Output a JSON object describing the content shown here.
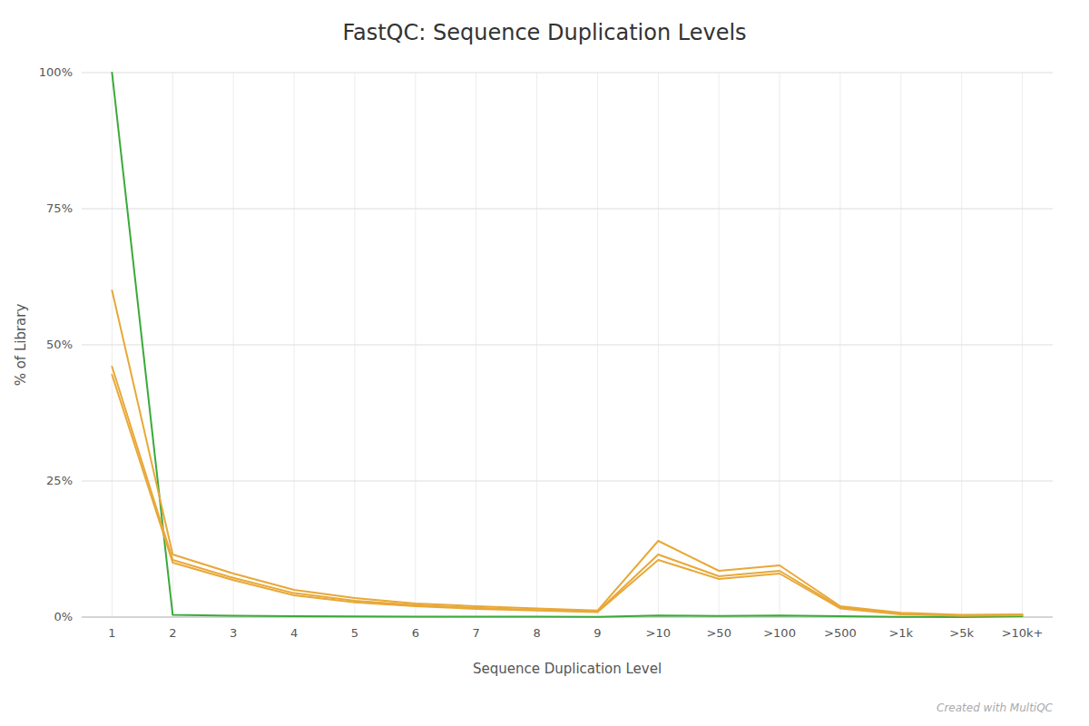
{
  "chart_data": {
    "type": "line",
    "title": "FastQC: Sequence Duplication Levels",
    "x_label": "Sequence Duplication Level",
    "y_label": "% of Library",
    "categories": [
      "1",
      "2",
      "3",
      "4",
      "5",
      "6",
      "7",
      "8",
      "9",
      ">10",
      ">50",
      ">100",
      ">500",
      ">1k",
      ">5k",
      ">10k+"
    ],
    "series": [
      {
        "color": "#39aa39",
        "values": [
          100.0,
          0.4,
          0.25,
          0.18,
          0.13,
          0.1,
          0.08,
          0.07,
          0.06,
          0.3,
          0.2,
          0.3,
          0.15,
          0.05,
          0.02,
          0.15
        ]
      },
      {
        "color": "#e8a838",
        "values": [
          60.0,
          11.5,
          8.0,
          5.0,
          3.5,
          2.5,
          2.0,
          1.6,
          1.2,
          14.0,
          8.5,
          9.5,
          2.0,
          0.8,
          0.4,
          0.5
        ]
      },
      {
        "color": "#e8a838",
        "values": [
          46.0,
          10.5,
          7.2,
          4.4,
          3.0,
          2.2,
          1.7,
          1.3,
          1.0,
          11.5,
          7.5,
          8.5,
          1.8,
          0.6,
          0.3,
          0.4
        ]
      },
      {
        "color": "#e8a838",
        "values": [
          44.5,
          10.0,
          6.8,
          4.0,
          2.7,
          2.0,
          1.5,
          1.2,
          0.9,
          10.5,
          7.0,
          8.0,
          1.6,
          0.5,
          0.25,
          0.35
        ]
      }
    ],
    "ylim": [
      0,
      100
    ],
    "yticks": [
      {
        "value": 0,
        "label": "0%"
      },
      {
        "value": 25,
        "label": "25%"
      },
      {
        "value": 50,
        "label": "50%"
      },
      {
        "value": 75,
        "label": "75%"
      },
      {
        "value": 100,
        "label": "100%"
      }
    ],
    "grid": true,
    "annotations": [
      "Created with MultiQC"
    ]
  }
}
